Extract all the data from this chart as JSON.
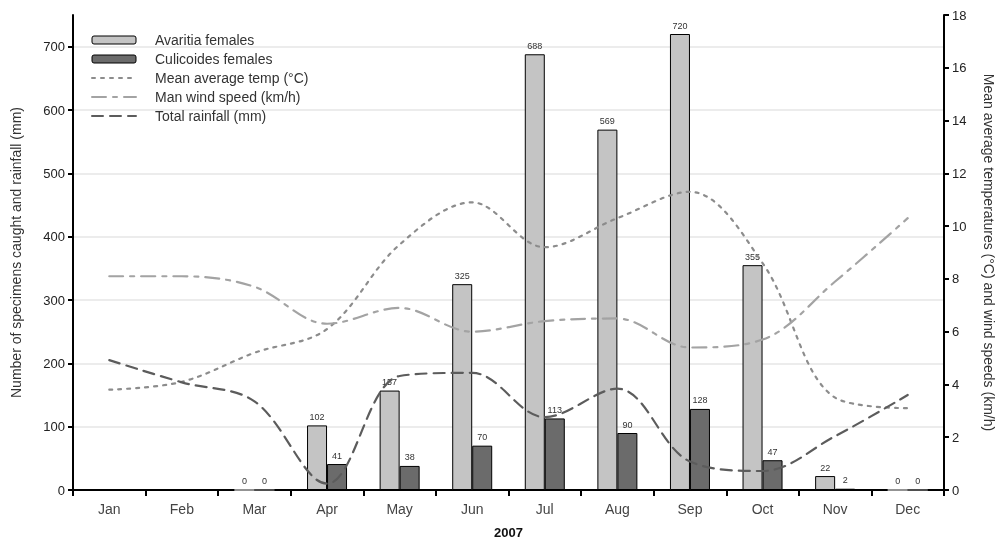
{
  "chart_data": {
    "type": "bar",
    "xlabel": "2007",
    "ylabel": "Number of specimens caught and rainfall (mm)",
    "y2label": "Mean average temperatures (°C) and wind speeds (km/h)",
    "categories": [
      "Jan",
      "Feb",
      "Mar",
      "Apr",
      "May",
      "Jun",
      "Jul",
      "Aug",
      "Sep",
      "Oct",
      "Nov",
      "Dec"
    ],
    "series": [
      {
        "name": "Avaritia females",
        "color": "#c4c4c4",
        "values": [
          null,
          null,
          0,
          102,
          157,
          325,
          688,
          569,
          720,
          355,
          22,
          0
        ],
        "value_labels": [
          null,
          null,
          "0",
          "102",
          "157",
          "325",
          "688",
          "569",
          "720",
          "355",
          "22",
          "0"
        ]
      },
      {
        "name": "Culicoides females",
        "color": "#6b6b6b",
        "values": [
          null,
          null,
          0,
          41,
          38,
          70,
          113,
          90,
          128,
          47,
          2,
          0
        ],
        "value_labels": [
          null,
          null,
          "0",
          "41",
          "38",
          "70",
          "113",
          "90",
          "128",
          "47",
          "2",
          "0"
        ]
      },
      {
        "name": "Mean average temp (°C)",
        "type": "line",
        "axis": "y2",
        "color": "#8c8c8c",
        "line_style": "dotted",
        "values": [
          3.8,
          4.1,
          5.2,
          6.1,
          9.3,
          10.9,
          9.2,
          10.3,
          11.3,
          8.6,
          3.5,
          3.1
        ]
      },
      {
        "name": "Man wind speed (km/h)",
        "type": "line",
        "axis": "y2",
        "color": "#a3a3a3",
        "line_style": "dashdot",
        "values": [
          8.1,
          8.1,
          7.7,
          6.3,
          6.9,
          6.0,
          6.4,
          6.5,
          5.4,
          5.7,
          7.9,
          10.3
        ]
      },
      {
        "name": "Total rainfall (mm)",
        "type": "line",
        "color": "#5c5c5c",
        "line_style": "dashed",
        "values": [
          205,
          170,
          140,
          10,
          180,
          185,
          115,
          160,
          45,
          30,
          85,
          150
        ]
      }
    ],
    "ylim": [
      0,
      750
    ],
    "yticks": [
      0,
      100,
      200,
      300,
      400,
      500,
      600,
      700
    ],
    "y2lim": [
      0,
      18
    ],
    "y2ticks": [
      0,
      2,
      4,
      6,
      8,
      10,
      12,
      14,
      16,
      18
    ],
    "grid": "y",
    "legend": "top left",
    "marker": "none"
  }
}
